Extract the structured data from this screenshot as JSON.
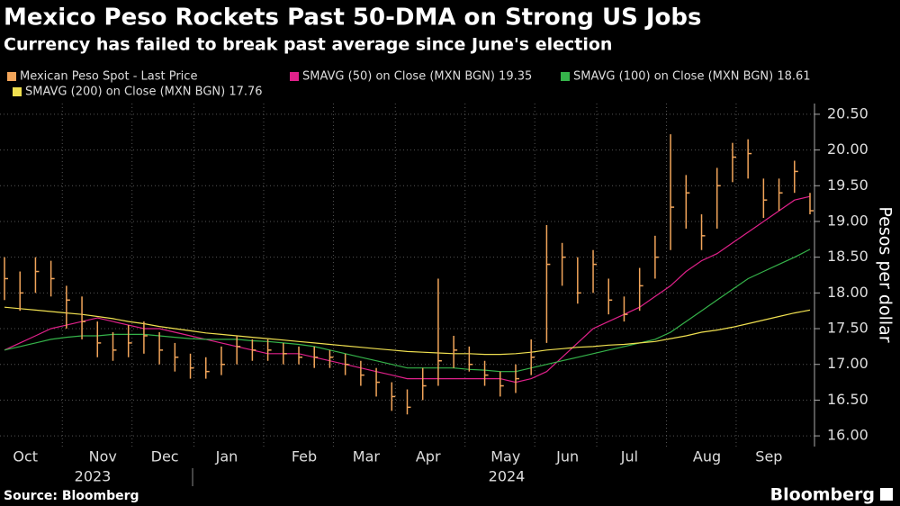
{
  "chart_data": {
    "type": "ohlc",
    "title": "Mexico Peso Rockets Past 50-DMA on Strong US Jobs",
    "subtitle": "Currency has failed to break past average since June's election",
    "y_label": "Pesos per dollar",
    "source": "Source: Bloomberg",
    "brand": "Bloomberg",
    "year_labels": [
      "2023",
      "2024"
    ],
    "categories": [
      null,
      "Oct",
      null,
      null,
      null,
      null,
      "Nov",
      null,
      null,
      null,
      "Dec",
      null,
      null,
      null,
      "Jan",
      null,
      null,
      null,
      null,
      "Feb",
      null,
      null,
      null,
      "Mar",
      null,
      null,
      null,
      "Apr",
      null,
      null,
      null,
      null,
      "May",
      null,
      null,
      null,
      "Jun",
      null,
      null,
      null,
      "Jul",
      null,
      null,
      null,
      null,
      "Aug",
      null,
      null,
      null,
      "Sep",
      null,
      null,
      null
    ],
    "price": {
      "name": "Mexican Peso Spot - Last Price",
      "color": "#f2a55a",
      "values": [
        18.2,
        18.0,
        18.3,
        18.2,
        17.9,
        17.6,
        17.3,
        17.2,
        17.3,
        17.4,
        17.2,
        17.1,
        16.95,
        16.9,
        17.0,
        17.25,
        17.2,
        17.2,
        17.15,
        17.1,
        17.1,
        17.1,
        17.0,
        16.85,
        16.75,
        16.55,
        16.4,
        16.7,
        17.05,
        17.2,
        17.0,
        16.85,
        16.7,
        16.8,
        17.1,
        18.4,
        18.5,
        18.0,
        18.4,
        17.9,
        17.7,
        18.1,
        18.5,
        19.2,
        19.4,
        18.8,
        19.5,
        19.9,
        19.95,
        19.3,
        19.4,
        19.7,
        19.15
      ],
      "high": [
        18.5,
        18.3,
        18.5,
        18.45,
        18.1,
        17.95,
        17.6,
        17.45,
        17.55,
        17.6,
        17.45,
        17.3,
        17.15,
        17.1,
        17.25,
        17.4,
        17.35,
        17.35,
        17.3,
        17.25,
        17.25,
        17.2,
        17.15,
        17.05,
        16.95,
        16.75,
        16.65,
        16.95,
        18.2,
        17.4,
        17.25,
        17.05,
        16.9,
        17.0,
        17.35,
        18.95,
        18.7,
        18.5,
        18.6,
        18.2,
        17.95,
        18.35,
        18.8,
        20.22,
        19.65,
        19.1,
        19.75,
        20.1,
        20.15,
        19.6,
        19.6,
        19.85,
        19.4
      ],
      "low": [
        17.9,
        17.75,
        18.0,
        17.95,
        17.5,
        17.35,
        17.1,
        17.05,
        17.1,
        17.15,
        17.0,
        16.9,
        16.8,
        16.8,
        16.85,
        17.0,
        17.05,
        17.05,
        17.0,
        17.0,
        16.95,
        16.95,
        16.85,
        16.7,
        16.55,
        16.35,
        16.3,
        16.5,
        16.7,
        16.95,
        16.9,
        16.7,
        16.55,
        16.6,
        16.85,
        17.3,
        18.1,
        17.85,
        18.0,
        17.7,
        17.6,
        17.75,
        18.2,
        18.6,
        18.9,
        18.6,
        18.9,
        19.55,
        19.6,
        19.05,
        19.15,
        19.4,
        19.1
      ]
    },
    "series": [
      {
        "name": "SMAVG (50)  on Close (MXN BGN) 19.35",
        "color": "#e0218a",
        "values": [
          17.2,
          17.3,
          17.4,
          17.5,
          17.55,
          17.6,
          17.65,
          17.6,
          17.55,
          17.5,
          17.5,
          17.45,
          17.4,
          17.35,
          17.3,
          17.25,
          17.2,
          17.15,
          17.15,
          17.15,
          17.1,
          17.05,
          17.0,
          16.95,
          16.9,
          16.85,
          16.8,
          16.8,
          16.8,
          16.8,
          16.8,
          16.8,
          16.8,
          16.75,
          16.8,
          16.9,
          17.1,
          17.3,
          17.5,
          17.6,
          17.7,
          17.8,
          17.95,
          18.1,
          18.3,
          18.45,
          18.55,
          18.7,
          18.85,
          19.0,
          19.15,
          19.3,
          19.35
        ]
      },
      {
        "name": "SMAVG (100)  on Close (MXN BGN) 18.61",
        "color": "#35b34a",
        "values": [
          17.2,
          17.25,
          17.3,
          17.35,
          17.38,
          17.4,
          17.4,
          17.42,
          17.42,
          17.42,
          17.4,
          17.38,
          17.36,
          17.35,
          17.35,
          17.35,
          17.33,
          17.32,
          17.3,
          17.28,
          17.25,
          17.2,
          17.15,
          17.1,
          17.05,
          17.0,
          16.95,
          16.95,
          16.95,
          16.95,
          16.93,
          16.92,
          16.9,
          16.9,
          16.95,
          17.0,
          17.05,
          17.1,
          17.15,
          17.2,
          17.25,
          17.3,
          17.35,
          17.45,
          17.6,
          17.75,
          17.9,
          18.05,
          18.2,
          18.3,
          18.4,
          18.5,
          18.61
        ]
      },
      {
        "name": "SMAVG (200)  on Close (MXN BGN) 17.76",
        "color": "#f0e050",
        "values": [
          17.8,
          17.78,
          17.76,
          17.74,
          17.72,
          17.7,
          17.67,
          17.64,
          17.6,
          17.57,
          17.53,
          17.5,
          17.47,
          17.44,
          17.42,
          17.4,
          17.38,
          17.36,
          17.34,
          17.32,
          17.3,
          17.28,
          17.26,
          17.24,
          17.22,
          17.2,
          17.18,
          17.17,
          17.16,
          17.15,
          17.15,
          17.14,
          17.14,
          17.15,
          17.17,
          17.2,
          17.22,
          17.24,
          17.25,
          17.27,
          17.28,
          17.3,
          17.32,
          17.36,
          17.4,
          17.45,
          17.48,
          17.52,
          17.57,
          17.62,
          17.67,
          17.72,
          17.76
        ]
      }
    ],
    "ylim": [
      15.85,
      20.65
    ],
    "yticks": [
      {
        "value": 16,
        "label": "16.00"
      },
      {
        "value": 16.5,
        "label": "16.50"
      },
      {
        "value": 17,
        "label": "17.00"
      },
      {
        "value": 17.5,
        "label": "17.50"
      },
      {
        "value": 18,
        "label": "18.00"
      },
      {
        "value": 18.5,
        "label": "18.50"
      },
      {
        "value": 19,
        "label": "19.00"
      },
      {
        "value": 19.5,
        "label": "19.50"
      },
      {
        "value": 20,
        "label": "20.00"
      },
      {
        "value": 20.5,
        "label": "20.50"
      }
    ],
    "grid": true
  }
}
